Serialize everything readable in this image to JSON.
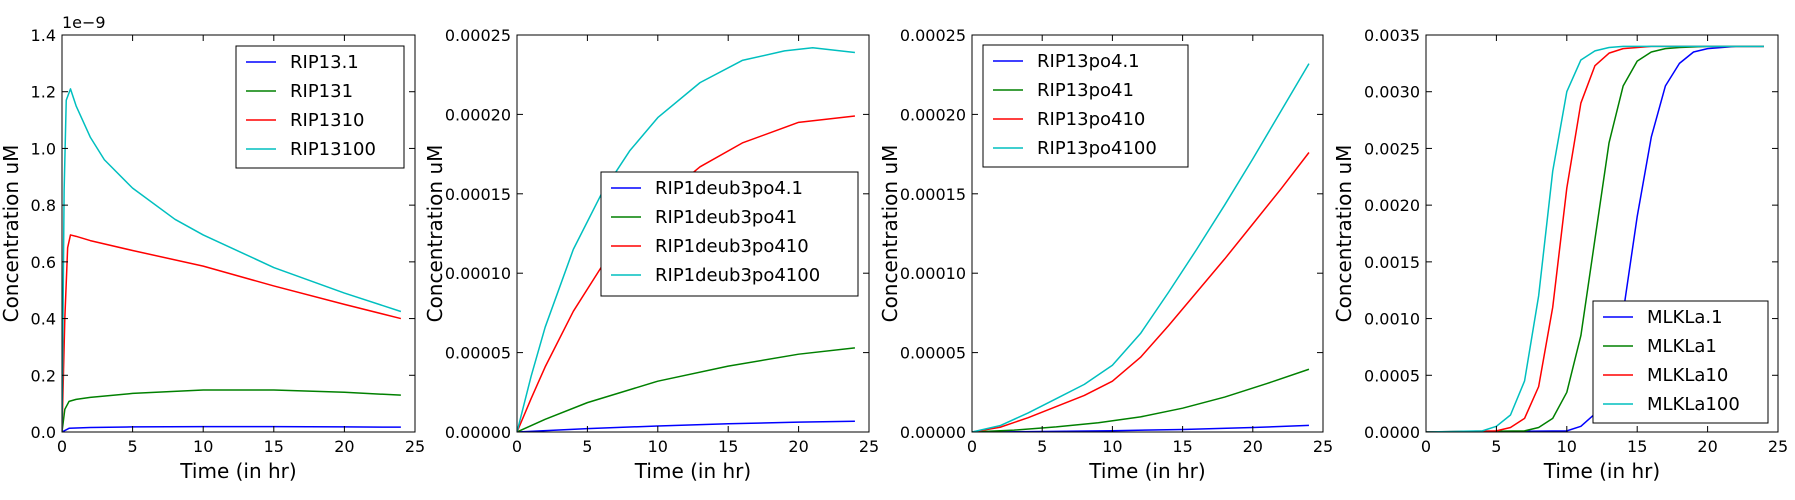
{
  "chart_data": [
    {
      "type": "line",
      "xlabel": "Time (in hr)",
      "ylabel": "Concentration uM",
      "xlim": [
        0,
        25
      ],
      "ylim": [
        0,
        1.4e-09
      ],
      "x_ticks": [
        "0",
        "5",
        "10",
        "15",
        "20",
        "25"
      ],
      "y_ticks": [
        "0.0",
        "0.2",
        "0.4",
        "0.6",
        "0.8",
        "1.0",
        "1.2",
        "1.4"
      ],
      "y_tick_values": [
        0,
        2e-10,
        4e-10,
        6e-10,
        8e-10,
        1e-09,
        1.2e-09,
        1.4e-09
      ],
      "y_exponent": "1e−9",
      "legend_position": "top-right",
      "grid": false,
      "series": [
        {
          "name": "RIP13.1",
          "color": "#0000ff",
          "x": [
            0,
            0.5,
            2,
            5,
            10,
            15,
            20,
            24
          ],
          "y": [
            0,
            1.3e-11,
            1.6e-11,
            1.8e-11,
            1.9e-11,
            1.9e-11,
            1.8e-11,
            1.7e-11
          ]
        },
        {
          "name": "RIP131",
          "color": "#008000",
          "x": [
            0,
            0.2,
            0.5,
            1,
            2,
            5,
            10,
            15,
            20,
            24
          ],
          "y": [
            0,
            8e-11,
            1.08e-10,
            1.15e-10,
            1.22e-10,
            1.36e-10,
            1.48e-10,
            1.48e-10,
            1.4e-10,
            1.3e-10
          ]
        },
        {
          "name": "RIP1310",
          "color": "#ff0000",
          "x": [
            0,
            0.2,
            0.4,
            0.6,
            1,
            2,
            5,
            10,
            15,
            20,
            24
          ],
          "y": [
            0,
            4e-10,
            6.5e-10,
            6.95e-10,
            6.9e-10,
            6.75e-10,
            6.4e-10,
            5.85e-10,
            5.15e-10,
            4.5e-10,
            4e-10
          ]
        },
        {
          "name": "RIP13100",
          "color": "#00bfbf",
          "x": [
            0,
            0.15,
            0.3,
            0.6,
            1,
            2,
            3,
            5,
            8,
            10,
            15,
            20,
            24
          ],
          "y": [
            0,
            8.5e-10,
            1.17e-09,
            1.21e-09,
            1.15e-09,
            1.04e-09,
            9.6e-10,
            8.6e-10,
            7.5e-10,
            6.95e-10,
            5.8e-10,
            4.9e-10,
            4.25e-10
          ]
        }
      ]
    },
    {
      "type": "line",
      "xlabel": "Time (in hr)",
      "ylabel": "Concentration uM",
      "xlim": [
        0,
        25
      ],
      "ylim": [
        0,
        0.00025
      ],
      "x_ticks": [
        "0",
        "5",
        "10",
        "15",
        "20",
        "25"
      ],
      "y_ticks": [
        "0.00000",
        "0.00005",
        "0.00010",
        "0.00015",
        "0.00020",
        "0.00025"
      ],
      "y_tick_values": [
        0,
        5e-05,
        0.0001,
        0.00015,
        0.0002,
        0.00025
      ],
      "legend_position": "center",
      "grid": false,
      "series": [
        {
          "name": "RIP1deub3po4.1",
          "color": "#0000ff",
          "x": [
            0,
            5,
            10,
            15,
            20,
            24
          ],
          "y": [
            0,
            2.1e-06,
            3.8e-06,
            5.2e-06,
            6.2e-06,
            6.8e-06
          ]
        },
        {
          "name": "RIP1deub3po41",
          "color": "#008000",
          "x": [
            0,
            2,
            5,
            10,
            15,
            20,
            24
          ],
          "y": [
            0,
            8e-06,
            1.85e-05,
            3.2e-05,
            4.15e-05,
            4.9e-05,
            5.3e-05
          ]
        },
        {
          "name": "RIP1deub3po410",
          "color": "#ff0000",
          "x": [
            0,
            1,
            2,
            4,
            6,
            8,
            10,
            13,
            16,
            20,
            24
          ],
          "y": [
            0,
            2.1e-05,
            4.1e-05,
            7.6e-05,
            0.000104,
            0.000127,
            0.000145,
            0.000167,
            0.000182,
            0.000195,
            0.000199
          ]
        },
        {
          "name": "RIP1deub3po4100",
          "color": "#00bfbf",
          "x": [
            0,
            1,
            2,
            4,
            6,
            8,
            10,
            13,
            16,
            19,
            21,
            24
          ],
          "y": [
            0,
            3.5e-05,
            6.6e-05,
            0.000115,
            0.00015,
            0.000177,
            0.000198,
            0.00022,
            0.000234,
            0.00024,
            0.000242,
            0.000239
          ]
        }
      ]
    },
    {
      "type": "line",
      "xlabel": "Time (in hr)",
      "ylabel": "Concentration uM",
      "xlim": [
        0,
        25
      ],
      "ylim": [
        0,
        0.00025
      ],
      "x_ticks": [
        "0",
        "5",
        "10",
        "15",
        "20",
        "25"
      ],
      "y_ticks": [
        "0.00000",
        "0.00005",
        "0.00010",
        "0.00015",
        "0.00020",
        "0.00025"
      ],
      "y_tick_values": [
        0,
        5e-05,
        0.0001,
        0.00015,
        0.0002,
        0.00025
      ],
      "legend_position": "top-left",
      "grid": false,
      "series": [
        {
          "name": "RIP13po4.1",
          "color": "#0000ff",
          "x": [
            0,
            5,
            10,
            15,
            20,
            24
          ],
          "y": [
            0,
            3e-07,
            8e-07,
            1.6e-06,
            2.8e-06,
            4.2e-06
          ]
        },
        {
          "name": "RIP13po41",
          "color": "#008000",
          "x": [
            0,
            3,
            6,
            9,
            12,
            15,
            18,
            21,
            24
          ],
          "y": [
            0,
            1.2e-06,
            3.2e-06,
            5.8e-06,
            9.5e-06,
            1.5e-05,
            2.2e-05,
            3.05e-05,
            3.95e-05
          ]
        },
        {
          "name": "RIP13po410",
          "color": "#ff0000",
          "x": [
            0,
            2,
            4,
            6,
            8,
            10,
            12,
            14,
            16,
            18,
            20,
            22,
            24
          ],
          "y": [
            0,
            3e-06,
            9e-06,
            1.6e-05,
            2.3e-05,
            3.2e-05,
            4.7e-05,
            6.7e-05,
            8.8e-05,
            0.000109,
            0.000131,
            0.000153,
            0.000176
          ]
        },
        {
          "name": "RIP13po4100",
          "color": "#00bfbf",
          "x": [
            0,
            2,
            4,
            6,
            8,
            10,
            12,
            14,
            16,
            18,
            20,
            22,
            24
          ],
          "y": [
            0,
            4e-06,
            1.2e-05,
            2.1e-05,
            3e-05,
            4.2e-05,
            6.2e-05,
            8.8e-05,
            0.000115,
            0.000143,
            0.000172,
            0.000202,
            0.000232
          ]
        }
      ]
    },
    {
      "type": "line",
      "xlabel": "Time (in hr)",
      "ylabel": "Concentration uM",
      "xlim": [
        0,
        25
      ],
      "ylim": [
        0,
        0.0035
      ],
      "x_ticks": [
        "0",
        "5",
        "10",
        "15",
        "20",
        "25"
      ],
      "y_ticks": [
        "0.0000",
        "0.0005",
        "0.0010",
        "0.0015",
        "0.0020",
        "0.0025",
        "0.0030",
        "0.0035"
      ],
      "y_tick_values": [
        0,
        0.0005,
        0.001,
        0.0015,
        0.002,
        0.0025,
        0.003,
        0.0035
      ],
      "legend_position": "bottom-right",
      "grid": false,
      "series": [
        {
          "name": "MLKLa.1",
          "color": "#0000ff",
          "x": [
            0,
            10,
            11,
            12,
            13,
            14,
            15,
            16,
            17,
            18,
            19,
            20,
            22,
            24
          ],
          "y": [
            0,
            1e-05,
            5e-05,
            0.00016,
            0.00045,
            0.00105,
            0.0019,
            0.0026,
            0.00305,
            0.00325,
            0.00335,
            0.00338,
            0.0034,
            0.0034
          ]
        },
        {
          "name": "MLKLa1",
          "color": "#008000",
          "x": [
            0,
            7,
            8,
            9,
            10,
            11,
            12,
            13,
            14,
            15,
            16,
            17,
            18,
            20,
            24
          ],
          "y": [
            0,
            1e-05,
            4e-05,
            0.00012,
            0.00035,
            0.00085,
            0.0017,
            0.00255,
            0.00305,
            0.00327,
            0.00335,
            0.00338,
            0.00339,
            0.0034,
            0.0034
          ]
        },
        {
          "name": "MLKLa10",
          "color": "#ff0000",
          "x": [
            0,
            5,
            6,
            7,
            8,
            9,
            10,
            11,
            12,
            13,
            14,
            15,
            16,
            18,
            24
          ],
          "y": [
            0,
            1e-05,
            4e-05,
            0.00012,
            0.0004,
            0.0011,
            0.00215,
            0.0029,
            0.00323,
            0.00334,
            0.00338,
            0.00339,
            0.0034,
            0.0034,
            0.0034
          ]
        },
        {
          "name": "MLKLa100",
          "color": "#00bfbf",
          "x": [
            0,
            4,
            5,
            6,
            7,
            8,
            9,
            10,
            11,
            12,
            13,
            14,
            16,
            24
          ],
          "y": [
            0,
            1e-05,
            5e-05,
            0.00015,
            0.00045,
            0.0012,
            0.0023,
            0.003,
            0.00328,
            0.00336,
            0.00339,
            0.0034,
            0.0034,
            0.0034
          ]
        }
      ]
    }
  ]
}
